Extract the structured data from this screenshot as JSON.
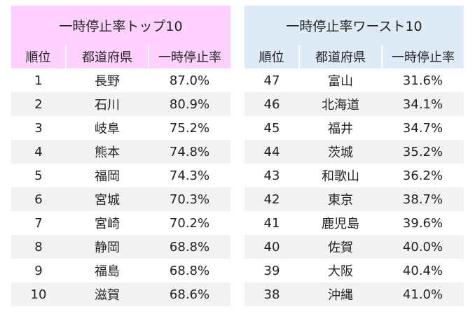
{
  "top": {
    "title": "一時停止率トップ10",
    "headers": [
      "順位",
      "都道府県",
      "一時停止率"
    ],
    "rows": [
      [
        "1",
        "長野",
        "87.0%"
      ],
      [
        "2",
        "石川",
        "80.9%"
      ],
      [
        "3",
        "岐阜",
        "75.2%"
      ],
      [
        "4",
        "熊本",
        "74.8%"
      ],
      [
        "5",
        "福岡",
        "74.3%"
      ],
      [
        "6",
        "宮城",
        "70.3%"
      ],
      [
        "7",
        "宮崎",
        "70.2%"
      ],
      [
        "8",
        "静岡",
        "68.8%"
      ],
      [
        "9",
        "福島",
        "68.8%"
      ],
      [
        "10",
        "滋賀",
        "68.6%"
      ]
    ]
  },
  "worst": {
    "title": "一時停止率ワースト10",
    "headers": [
      "順位",
      "都道府県",
      "一時停止率"
    ],
    "rows": [
      [
        "47",
        "富山",
        "31.6%"
      ],
      [
        "46",
        "北海道",
        "34.1%"
      ],
      [
        "45",
        "福井",
        "34.7%"
      ],
      [
        "44",
        "茨城",
        "35.2%"
      ],
      [
        "43",
        "和歌山",
        "36.2%"
      ],
      [
        "42",
        "東京",
        "38.7%"
      ],
      [
        "41",
        "鹿児島",
        "39.6%"
      ],
      [
        "40",
        "佐賀",
        "40.0%"
      ],
      [
        "39",
        "大阪",
        "40.4%"
      ],
      [
        "38",
        "沖縄",
        "41.0%"
      ]
    ]
  },
  "colors": {
    "top_header": "#ffd1ff",
    "worst_header": "#dfeaf7",
    "row_shade": "#f2f2f2"
  }
}
